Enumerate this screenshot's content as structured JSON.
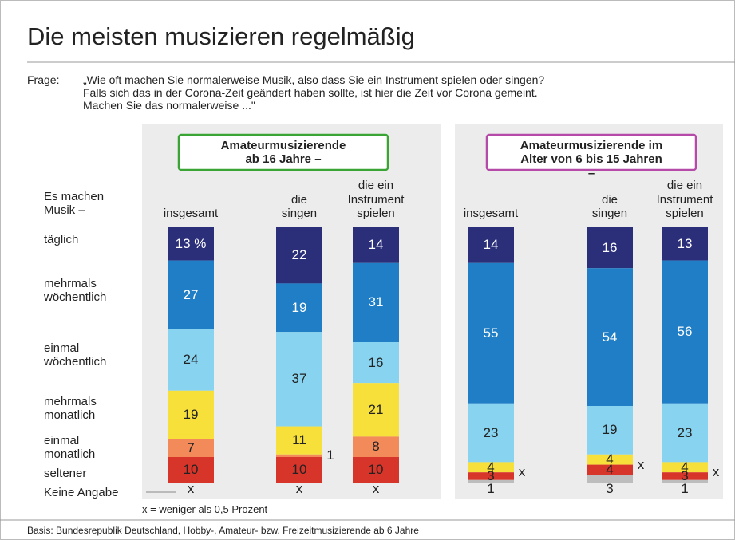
{
  "chart_data": {
    "type": "stacked_bar",
    "title": "Die meisten musizieren regelmäßig",
    "question_label": "Frage:",
    "question": "„Wie oft machen Sie normalerweise Musik, also dass Sie ein Instrument spielen oder singen?\nFalls sich das in der Corona-Zeit geändert haben sollte, ist hier die Zeit vor Corona gemeint.\nMachen Sie das normalerweise ...\"",
    "row_header": "Es machen\nMusik –",
    "groups": [
      {
        "name": "Amateurmusizierende\nab 16 Jahre –",
        "color": "#3aa535"
      },
      {
        "name": "Amateurmusizierende im\nAlter von 6 bis 15 Jahren –",
        "color": "#b54aa8"
      }
    ],
    "categories": [
      "insgesamt",
      "die\nsingen",
      "die ein\nInstrument\nspielen",
      "insgesamt",
      "die\nsingen",
      "die ein\nInstrument\nspielen"
    ],
    "series": [
      {
        "name": "täglich",
        "color": "#2b2f7a",
        "values": [
          13,
          22,
          14,
          14,
          16,
          13
        ],
        "value_labels": [
          "13 %",
          "22",
          "14",
          "14",
          "16",
          "13"
        ]
      },
      {
        "name": "mehrmals\nwöchentlich",
        "color": "#1f7ec6",
        "values": [
          27,
          19,
          31,
          55,
          54,
          56
        ]
      },
      {
        "name": "einmal\nwöchentlich",
        "color": "#87d3f0",
        "values": [
          24,
          37,
          16,
          23,
          19,
          23
        ]
      },
      {
        "name": "mehrmals\nmonatlich",
        "color": "#f7e03a",
        "values": [
          19,
          11,
          21,
          4,
          4,
          4
        ]
      },
      {
        "name": "einmal\nmonatlich",
        "color": "#f38a5a",
        "values": [
          7,
          1,
          8,
          0,
          0,
          0
        ],
        "value_labels": [
          "7",
          "1",
          "8",
          "x",
          "x",
          "x"
        ]
      },
      {
        "name": "seltener",
        "color": "#d7342a",
        "values": [
          10,
          10,
          10,
          3,
          4,
          3
        ]
      },
      {
        "name": "Keine Angabe",
        "color": "#bdbdbd",
        "values": [
          0,
          0,
          0,
          1,
          3,
          1
        ],
        "value_labels": [
          "x",
          "x",
          "x",
          "1",
          "3",
          "1"
        ]
      }
    ],
    "note": "x = weniger als 0,5 Prozent",
    "source": "Basis: Bundesrepublik Deutschland, Hobby-, Amateur- bzw. Freizeitmusizierende ab 6 Jahre"
  }
}
